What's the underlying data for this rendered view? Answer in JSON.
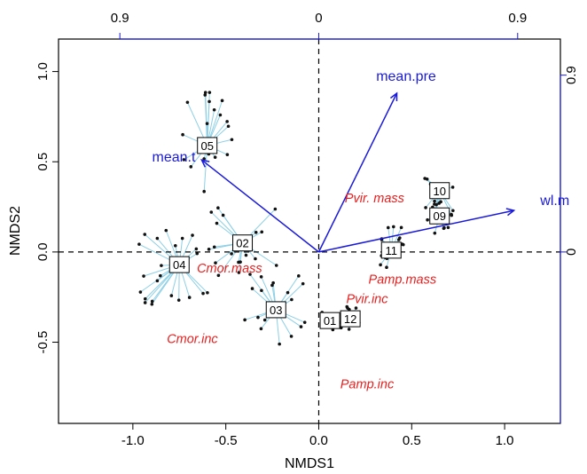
{
  "chart_data": {
    "type": "scatter",
    "xlabel": "NMDS1",
    "ylabel": "NMDS2",
    "xlim": [
      -1.4,
      1.3
    ],
    "ylim": [
      -0.95,
      1.18
    ],
    "bottom_ticks": [
      {
        "v": -1.0,
        "label": "-1.0"
      },
      {
        "v": -0.5,
        "label": "-0.5"
      },
      {
        "v": 0.0,
        "label": "0.0"
      },
      {
        "v": 0.5,
        "label": "0.5"
      },
      {
        "v": 1.0,
        "label": "1.0"
      }
    ],
    "left_ticks": [
      {
        "v": -0.5,
        "label": "-0.5"
      },
      {
        "v": 0.0,
        "label": "0.0"
      },
      {
        "v": 0.5,
        "label": "0.5"
      },
      {
        "v": 1.0,
        "label": "1.0"
      }
    ],
    "top_ticks": [
      {
        "v": -1.07,
        "label": "0.9"
      },
      {
        "v": 0.0,
        "label": "0"
      },
      {
        "v": 1.07,
        "label": "0.9"
      }
    ],
    "right_ticks": [
      {
        "v": 0.98,
        "label": "0.9"
      },
      {
        "v": 0.0,
        "label": "0"
      }
    ],
    "secondary_axis_color": "#1a1adb",
    "site_point_color": "#111111",
    "spider_color": "#8ccfe6",
    "species_color": "#e8201f",
    "vector_color": "#1a1adb",
    "centroids": [
      {
        "label": "01",
        "x": 0.06,
        "y": -0.38
      },
      {
        "label": "02",
        "x": -0.41,
        "y": 0.05
      },
      {
        "label": "03",
        "x": -0.23,
        "y": -0.32
      },
      {
        "label": "04",
        "x": -0.75,
        "y": -0.07
      },
      {
        "label": "05",
        "x": -0.6,
        "y": 0.59
      },
      {
        "label": "09",
        "x": 0.65,
        "y": 0.2
      },
      {
        "label": "10",
        "x": 0.65,
        "y": 0.34
      },
      {
        "label": "11",
        "x": 0.39,
        "y": 0.01
      },
      {
        "label": "12",
        "x": 0.17,
        "y": -0.37
      }
    ],
    "vectors": [
      {
        "name": "mean.pre",
        "x": 0.42,
        "y": 0.88,
        "lx": 0.47,
        "ly": 0.95
      },
      {
        "name": "mean.t",
        "x": -0.63,
        "y": 0.51,
        "lx": -0.78,
        "ly": 0.5
      },
      {
        "name": "wl.m",
        "x": 1.05,
        "y": 0.23,
        "lx": 1.27,
        "ly": 0.26
      }
    ],
    "species": [
      {
        "name": "Cmor.mass",
        "x": -0.48,
        "y": -0.09
      },
      {
        "name": "Cmor.inc",
        "x": -0.68,
        "y": -0.48
      },
      {
        "name": "Pvir. mass",
        "x": 0.3,
        "y": 0.3
      },
      {
        "name": "Pamp.mass",
        "x": 0.45,
        "y": -0.15
      },
      {
        "name": "Pvir.inc",
        "x": 0.26,
        "y": -0.26
      },
      {
        "name": "Pamp.inc",
        "x": 0.26,
        "y": -0.73
      }
    ]
  }
}
